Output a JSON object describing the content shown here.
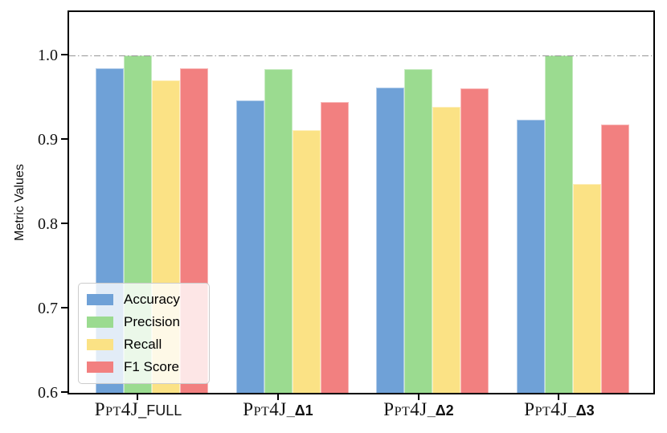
{
  "chart_data": {
    "type": "bar",
    "title": "",
    "xlabel": "",
    "ylabel": "Metric Values",
    "categories": [
      {
        "prefix": "Ppt4J",
        "suffix": "_FULL",
        "suffix_bold": false,
        "full": "PPT4J_FULL"
      },
      {
        "prefix": "Ppt4J",
        "suffix": "_Δ1",
        "suffix_bold": true,
        "full": "PPT4J_Δ1"
      },
      {
        "prefix": "Ppt4J",
        "suffix": "_Δ2",
        "suffix_bold": true,
        "full": "PPT4J_Δ2"
      },
      {
        "prefix": "Ppt4J",
        "suffix": "_Δ3",
        "suffix_bold": true,
        "full": "PPT4J_Δ3"
      }
    ],
    "series": [
      {
        "name": "Accuracy",
        "color": "#6FA1D7",
        "values": [
          0.985,
          0.947,
          0.962,
          0.924
        ]
      },
      {
        "name": "Precision",
        "color": "#9BDB90",
        "values": [
          1.0,
          0.984,
          0.984,
          1.0
        ]
      },
      {
        "name": "Recall",
        "color": "#FBE285",
        "values": [
          0.97,
          0.911,
          0.939,
          0.848
        ]
      },
      {
        "name": "F1 Score",
        "color": "#F28080",
        "values": [
          0.985,
          0.945,
          0.961,
          0.918
        ]
      }
    ],
    "ylim": [
      0.6,
      1.0514
    ],
    "y_ticks": [
      1.0,
      0.9,
      0.8,
      0.7,
      0.6
    ],
    "y_tick_labels": [
      "1.0",
      "0.9",
      "0.8",
      "0.7",
      "0.6"
    ],
    "reference_line": {
      "value": 1.0,
      "style": "dash-dot",
      "color": "#979797"
    },
    "legend": {
      "position": "lower-left",
      "entries": [
        "Accuracy",
        "Precision",
        "Recall",
        "F1 Score"
      ]
    },
    "grid": false,
    "spine_color": "#000000",
    "background": "#ffffff"
  }
}
